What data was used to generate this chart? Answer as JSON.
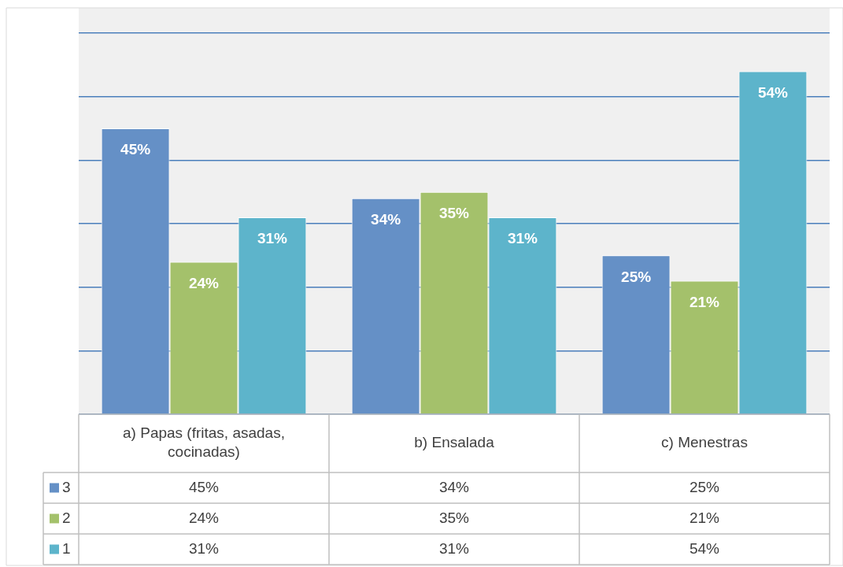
{
  "chart_data": {
    "type": "bar",
    "categories": [
      "a)    Papas (fritas, asadas, cocinadas)",
      "b)    Ensalada",
      "c)    Menestras"
    ],
    "series": [
      {
        "name": "3",
        "color": "#6590c6",
        "values": [
          45,
          34,
          25
        ],
        "value_labels": [
          "45%",
          "34%",
          "25%"
        ]
      },
      {
        "name": "2",
        "color": "#a4c16b",
        "values": [
          24,
          35,
          21
        ],
        "value_labels": [
          "24%",
          "35%",
          "21%"
        ]
      },
      {
        "name": "1",
        "color": "#5db4cb",
        "values": [
          31,
          31,
          54
        ],
        "value_labels": [
          "31%",
          "31%",
          "54%"
        ]
      }
    ],
    "ylim": [
      0,
      60
    ],
    "yticks": [
      {
        "value": 0,
        "label": null
      },
      {
        "value": 10,
        "label": null
      },
      {
        "value": 20,
        "label": null
      },
      {
        "value": 30,
        "label": null
      },
      {
        "value": 40,
        "label": null
      },
      {
        "value": 50,
        "label": null
      },
      {
        "value": 60,
        "label": null
      }
    ],
    "grid": "y",
    "legend": "bottom left"
  }
}
